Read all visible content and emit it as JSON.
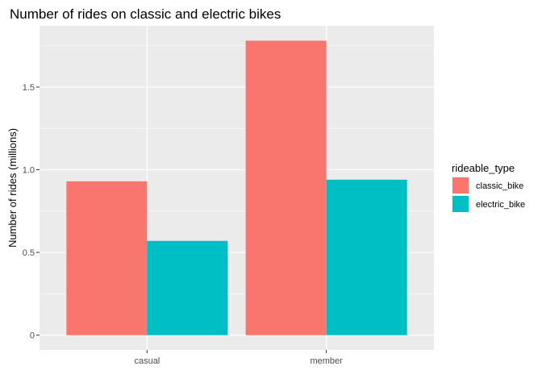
{
  "chart_data": {
    "type": "bar",
    "title": "Number of rides on classic and electric bikes",
    "xlabel": "",
    "ylabel": "Number of rides (millions)",
    "categories": [
      "casual",
      "member"
    ],
    "series": [
      {
        "name": "classic_bike",
        "values": [
          0.93,
          1.78
        ],
        "color": "#F8766D"
      },
      {
        "name": "electric_bike",
        "values": [
          0.57,
          0.94
        ],
        "color": "#00BFC4"
      }
    ],
    "ylim": [
      -0.089,
      1.87
    ],
    "yticks": [
      0,
      0.5,
      1.0,
      1.5
    ],
    "ytick_labels": [
      "0",
      "0.5",
      "1.0",
      "1.5"
    ],
    "grid": true,
    "panel_background": "#EBEBEB",
    "legend": {
      "title": "rideable_type",
      "position": "right"
    }
  }
}
